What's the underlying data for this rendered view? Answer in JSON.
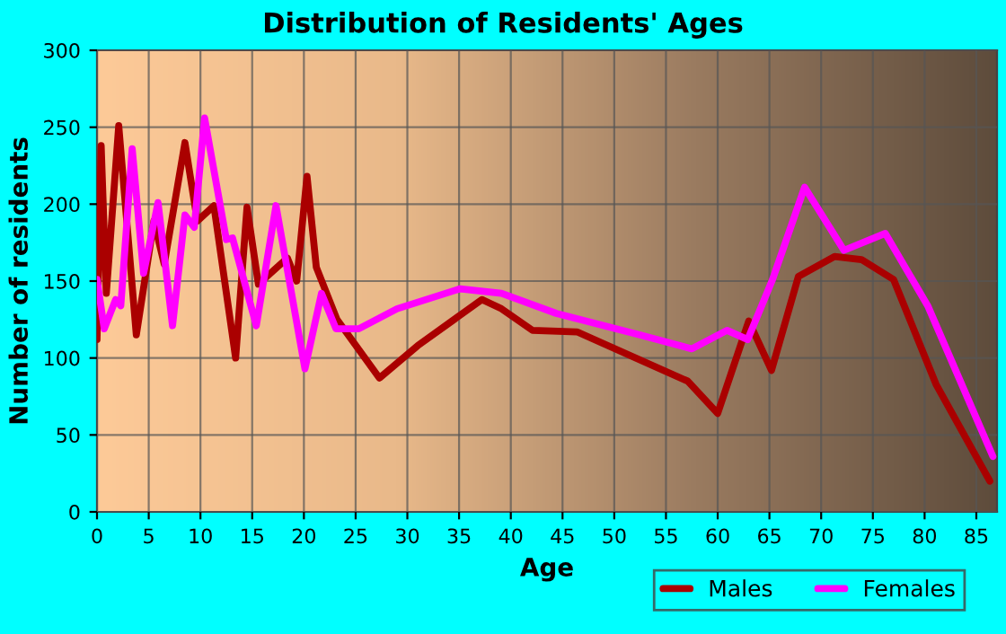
{
  "chart_data": {
    "type": "line",
    "title": "Distribution of Residents' Ages",
    "xlabel": "Age",
    "ylabel": "Number of residents",
    "xlim": [
      0,
      87
    ],
    "xticks": [
      0,
      5,
      10,
      15,
      20,
      25,
      30,
      35,
      40,
      45,
      50,
      55,
      60,
      65,
      70,
      75,
      80,
      85
    ],
    "ylim": [
      0,
      300
    ],
    "yticks": [
      0,
      50,
      100,
      150,
      200,
      250,
      300
    ],
    "grid": true,
    "legend": "bottom right",
    "line_style": "solid",
    "marker": "none",
    "series": [
      {
        "name": "Males",
        "color": "#aa0000",
        "x": [
          0,
          0.4,
          0.9,
          2.1,
          3.8,
          5.5,
          6.5,
          8.5,
          9.7,
          11.3,
          13.4,
          14.5,
          15.6,
          18.4,
          19.3,
          20.3,
          21.2,
          23.2,
          27.3,
          31,
          37.2,
          39.1,
          42.1,
          46.4,
          57.1,
          60,
          63,
          65.2,
          67.8,
          71.3,
          73.9,
          77,
          81.1,
          86.3
        ],
        "values": [
          112,
          238,
          142,
          251,
          115,
          189,
          161,
          240,
          189,
          199,
          100,
          198,
          148,
          165,
          150,
          218,
          159,
          125,
          87,
          108,
          138,
          132,
          118,
          117,
          85,
          64,
          124,
          92,
          153,
          166,
          164,
          151,
          83,
          20
        ]
      },
      {
        "name": "Females",
        "color": "#ff00ff",
        "x": [
          0,
          0.7,
          1.8,
          2.3,
          3.4,
          4.5,
          5.9,
          7.3,
          8.5,
          9.4,
          10.4,
          12.5,
          13.1,
          15.4,
          17.3,
          20.1,
          21.7,
          23.1,
          25.3,
          29,
          35.1,
          39.1,
          44.4,
          52.5,
          57.5,
          60.9,
          62.9,
          65.3,
          68.4,
          72.2,
          76.2,
          80.3,
          86.6
        ],
        "values": [
          151,
          119,
          138,
          134,
          236,
          155,
          201,
          121,
          193,
          185,
          256,
          177,
          178,
          121,
          199,
          93,
          142,
          119,
          119,
          132,
          145,
          142,
          129,
          115,
          106,
          118,
          112,
          151,
          211,
          170,
          181,
          134,
          36
        ]
      }
    ]
  }
}
